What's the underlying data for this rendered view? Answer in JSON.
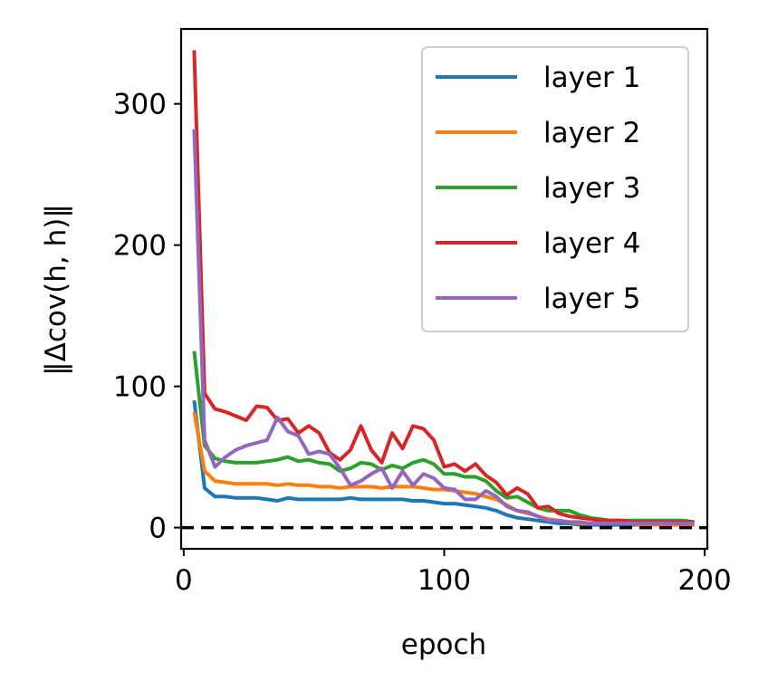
{
  "chart_data": {
    "type": "line",
    "xlabel": "epoch",
    "ylabel": "‖Δcov(h, h)‖",
    "xlim": [
      -1,
      201
    ],
    "ylim": [
      -15,
      353
    ],
    "xticks": [
      0,
      100,
      200
    ],
    "yticks": [
      0,
      100,
      200,
      300
    ],
    "grid": false,
    "legend_position": "top-right",
    "reference_line": {
      "y": 0,
      "style": "dashed",
      "color": "#000000"
    },
    "x": [
      4,
      8,
      12,
      16,
      20,
      24,
      28,
      32,
      36,
      40,
      44,
      48,
      52,
      56,
      60,
      64,
      68,
      72,
      76,
      80,
      84,
      88,
      92,
      96,
      100,
      104,
      108,
      112,
      116,
      120,
      124,
      128,
      132,
      136,
      140,
      144,
      148,
      152,
      156,
      160,
      164,
      168,
      172,
      176,
      180,
      184,
      188,
      192,
      196
    ],
    "series": [
      {
        "name": "layer 1",
        "color": "#1f77b4",
        "values": [
          90,
          28,
          22,
          22,
          21,
          21,
          21,
          20,
          19,
          21,
          20,
          20,
          20,
          20,
          20,
          21,
          20,
          20,
          20,
          20,
          20,
          19,
          19,
          18,
          17,
          17,
          16,
          15,
          14,
          12,
          9,
          7,
          6,
          5,
          4,
          3,
          3,
          2,
          2,
          2,
          2,
          2,
          2,
          2,
          2,
          2,
          2,
          2,
          2
        ]
      },
      {
        "name": "layer 2",
        "color": "#ff7f0e",
        "values": [
          82,
          40,
          33,
          32,
          31,
          31,
          31,
          31,
          30,
          31,
          30,
          30,
          29,
          29,
          28,
          29,
          29,
          29,
          28,
          29,
          29,
          29,
          28,
          27,
          27,
          26,
          25,
          24,
          22,
          20,
          16,
          12,
          10,
          8,
          6,
          5,
          4,
          3,
          3,
          3,
          3,
          3,
          3,
          2,
          2,
          2,
          2,
          2,
          2
        ]
      },
      {
        "name": "layer 3",
        "color": "#2ca02c",
        "values": [
          125,
          58,
          49,
          47,
          46,
          46,
          46,
          47,
          48,
          50,
          47,
          48,
          46,
          45,
          40,
          42,
          46,
          45,
          41,
          44,
          42,
          46,
          48,
          45,
          38,
          38,
          36,
          36,
          33,
          26,
          21,
          22,
          18,
          14,
          12,
          12,
          12,
          9,
          7,
          6,
          5,
          5,
          5,
          5,
          5,
          5,
          5,
          5,
          4
        ]
      },
      {
        "name": "layer 4",
        "color": "#d62728",
        "values": [
          338,
          95,
          84,
          82,
          79,
          76,
          86,
          85,
          76,
          77,
          67,
          72,
          67,
          53,
          48,
          55,
          72,
          55,
          46,
          67,
          56,
          72,
          70,
          62,
          43,
          45,
          40,
          45,
          37,
          32,
          23,
          28,
          24,
          14,
          15,
          10,
          8,
          7,
          6,
          5,
          5,
          5,
          4,
          4,
          4,
          4,
          4,
          4,
          4
        ]
      },
      {
        "name": "layer 5",
        "color": "#9467bd",
        "values": [
          282,
          62,
          43,
          50,
          55,
          58,
          60,
          62,
          78,
          68,
          65,
          52,
          54,
          52,
          42,
          30,
          33,
          38,
          42,
          28,
          40,
          30,
          38,
          35,
          28,
          27,
          20,
          20,
          26,
          22,
          15,
          12,
          11,
          8,
          5,
          5,
          4,
          4,
          3,
          3,
          3,
          3,
          3,
          3,
          3,
          3,
          3,
          3,
          3
        ]
      }
    ]
  }
}
